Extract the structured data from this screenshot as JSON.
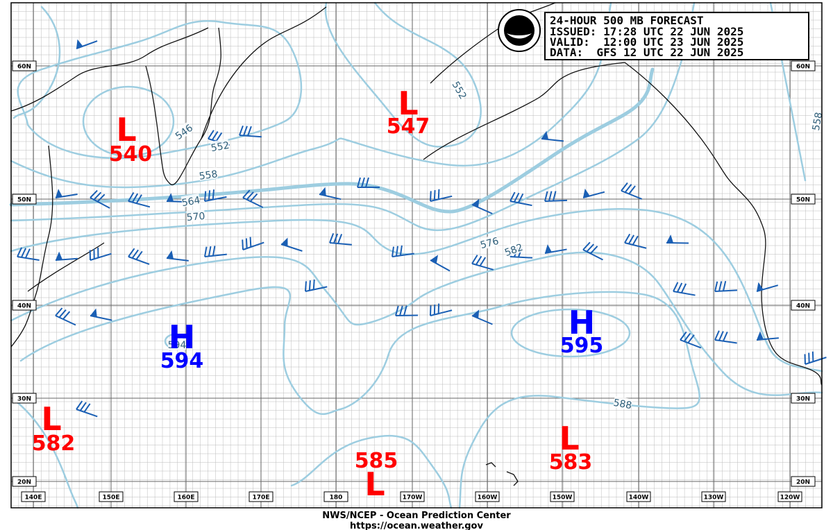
{
  "header": {
    "title": "24-HOUR 500 MB FORECAST",
    "issued": "ISSUED: 17:28 UTC 22 JUN 2025",
    "valid": "VALID:  12:00 UTC 23 JUN 2025",
    "data": "DATA:  GFS 12 UTC 22 JUN 2025"
  },
  "centers": [
    {
      "type": "L",
      "value": "540"
    },
    {
      "type": "L",
      "value": "547"
    },
    {
      "type": "H",
      "value": "594"
    },
    {
      "type": "H",
      "value": "595"
    },
    {
      "type": "L",
      "value": "582"
    },
    {
      "type": "L",
      "value": "585"
    },
    {
      "type": "L",
      "value": "583"
    }
  ],
  "contour_labels": [
    "546",
    "552",
    "558",
    "564",
    "570",
    "576",
    "582",
    "588",
    "552",
    "558",
    "594"
  ],
  "lat_labels": [
    "60N",
    "50N",
    "40N",
    "30N",
    "20N"
  ],
  "lon_labels": [
    "140E",
    "150E",
    "160E",
    "170E",
    "180",
    "170W",
    "160W",
    "150W",
    "140W",
    "130W",
    "120W"
  ],
  "footer": {
    "agency": "NWS/NCEP - Ocean Prediction Center",
    "url": "https://ocean.weather.gov"
  }
}
